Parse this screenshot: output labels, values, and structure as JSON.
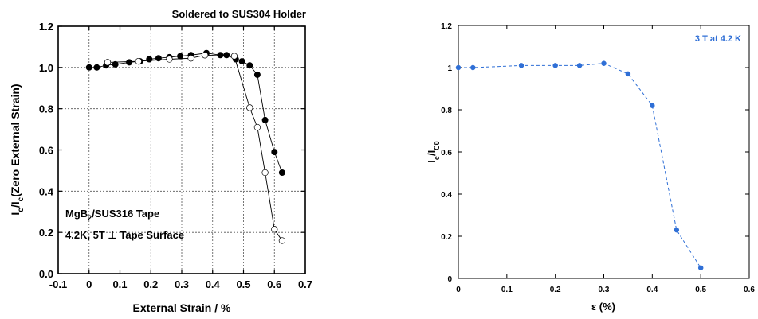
{
  "chart_data": [
    {
      "type": "scatter",
      "title": "Soldered to SUS304 Holder",
      "xlabel": "External Strain / %",
      "ylabel": "I_c/I_c(Zero External Strain)",
      "ylabel_main": "I",
      "ylabel_sub1": "c",
      "ylabel_mid": "/I",
      "ylabel_sub2": "c",
      "ylabel_tail": "(Zero External Strain)",
      "xlim": [
        -0.1,
        0.7
      ],
      "ylim": [
        0.0,
        1.2
      ],
      "grid": true,
      "x_ticks": [
        -0.1,
        0,
        0.1,
        0.2,
        0.3,
        0.4,
        0.5,
        0.6,
        0.7
      ],
      "x_tick_labels": [
        "-0.1",
        "0",
        "0.1",
        "0.2",
        "0.3",
        "0.4",
        "0.5",
        "0.6",
        "0.7"
      ],
      "y_ticks": [
        0.0,
        0.2,
        0.4,
        0.6,
        0.8,
        1.0,
        1.2
      ],
      "y_tick_labels": [
        "0.0",
        "0.2",
        "0.4",
        "0.6",
        "0.8",
        "1.0",
        "1.2"
      ],
      "annotation_line1_a": "MgB",
      "annotation_line1_sub": "2",
      "annotation_line1_b": "/SUS316 Tape",
      "annotation_line2": "4.2K, 5T ⊥ Tape Surface",
      "series": [
        {
          "marker": "filled",
          "x": [
            0.0,
            0.025,
            0.055,
            0.085,
            0.13,
            0.165,
            0.195,
            0.225,
            0.26,
            0.295,
            0.33,
            0.38,
            0.425,
            0.445,
            0.475,
            0.495,
            0.52,
            0.545,
            0.57,
            0.6,
            0.625
          ],
          "y": [
            1.0,
            1.0,
            1.01,
            1.015,
            1.025,
            1.03,
            1.04,
            1.045,
            1.05,
            1.055,
            1.06,
            1.07,
            1.06,
            1.06,
            1.04,
            1.03,
            1.01,
            0.965,
            0.745,
            0.59,
            0.49
          ]
        },
        {
          "marker": "open",
          "x": [
            0.06,
            0.16,
            0.26,
            0.33,
            0.375,
            0.47,
            0.52,
            0.545,
            0.57,
            0.6,
            0.625
          ],
          "y": [
            1.025,
            1.03,
            1.04,
            1.045,
            1.06,
            1.055,
            0.805,
            0.71,
            0.49,
            0.215,
            0.16
          ]
        }
      ]
    },
    {
      "type": "line",
      "title": "",
      "annotation": "3 T at 4.2 K",
      "xlabel": "ε (%)",
      "ylabel": "I_c/I_c0",
      "ylabel_main": "I",
      "ylabel_sub1": "c",
      "ylabel_mid": "/I",
      "ylabel_sub2": "C0",
      "xlim": [
        0,
        0.6
      ],
      "ylim": [
        0,
        1.2
      ],
      "grid": false,
      "x_ticks": [
        0,
        0.1,
        0.2,
        0.3,
        0.4,
        0.5,
        0.6
      ],
      "x_tick_labels": [
        "0",
        "0.1",
        "0.2",
        "0.3",
        "0.4",
        "0.5",
        "0.6"
      ],
      "y_ticks": [
        0,
        0.2,
        0.4,
        0.6,
        0.8,
        1.0,
        1.2
      ],
      "y_tick_labels": [
        "0",
        "0.2",
        "0.4",
        "0.6",
        "0.8",
        "1",
        "1.2"
      ],
      "colors": {
        "series": "#2f6fd6",
        "annotation": "#2f6fd6"
      },
      "series": [
        {
          "x": [
            0,
            0.03,
            0.13,
            0.2,
            0.25,
            0.3,
            0.35,
            0.4,
            0.45,
            0.5
          ],
          "y": [
            1.0,
            1.0,
            1.01,
            1.01,
            1.01,
            1.02,
            0.97,
            0.82,
            0.23,
            0.05
          ]
        }
      ]
    }
  ]
}
